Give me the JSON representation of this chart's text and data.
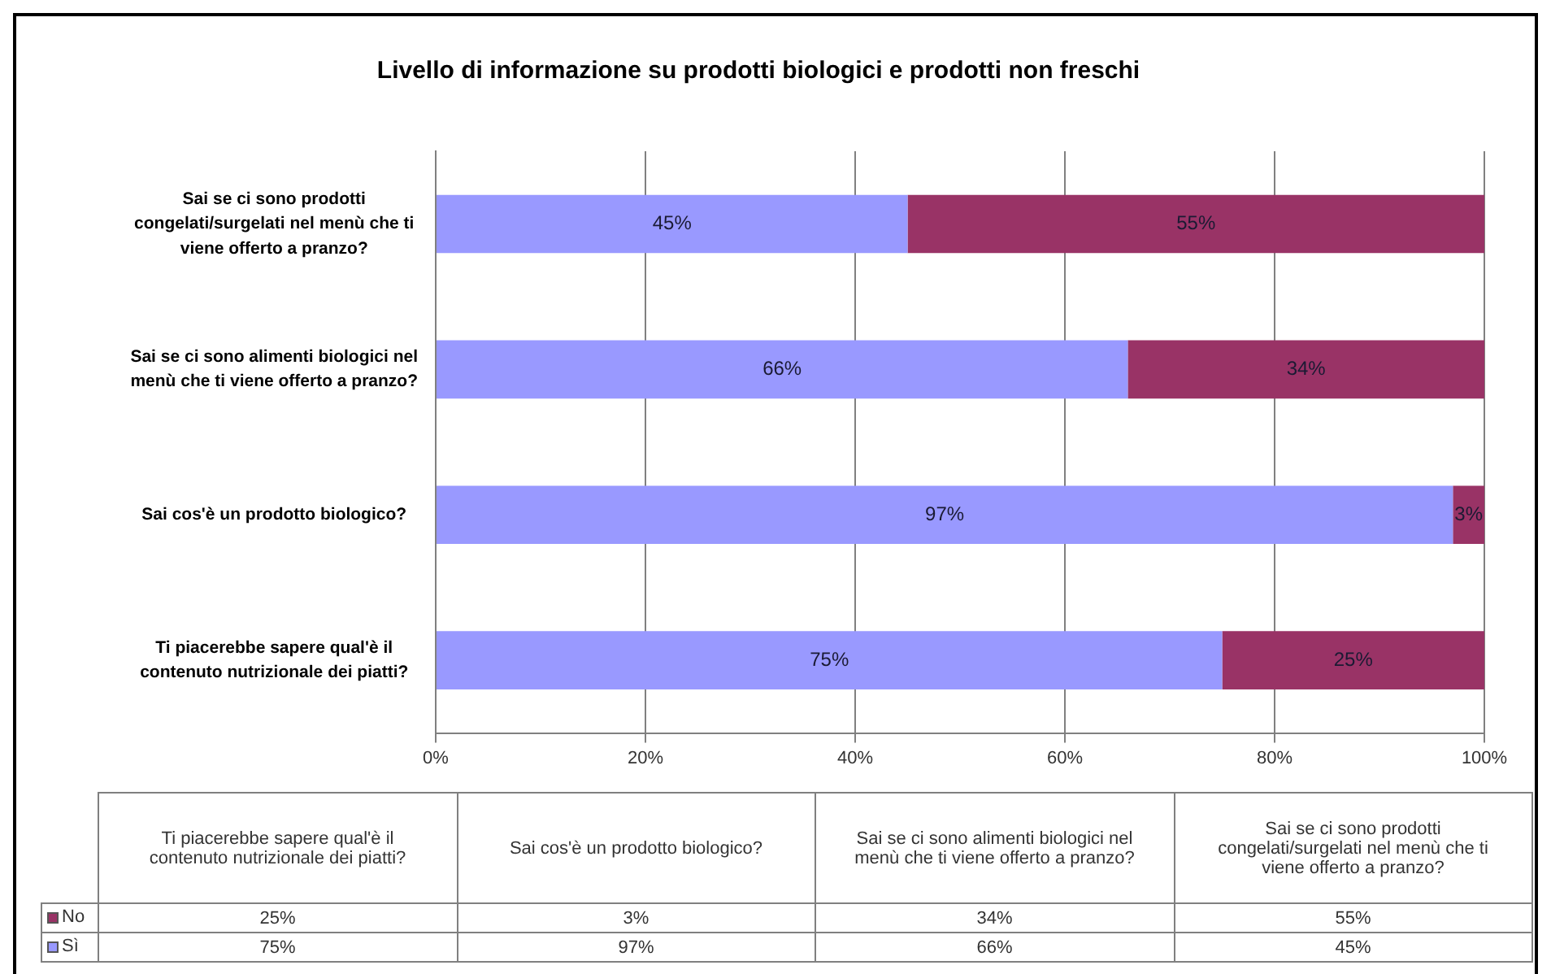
{
  "chart_data": {
    "type": "bar",
    "orientation": "horizontal",
    "stacked": true,
    "title": "Livello di informazione su prodotti biologici e prodotti non freschi",
    "categories": [
      "Sai se ci sono prodotti congelati/surgelati nel menù che ti viene offerto a pranzo?",
      "Sai se ci sono alimenti biologici nel menù che ti viene offerto a pranzo?",
      "Sai cos'è un prodotto biologico?",
      "Ti piacerebbe sapere qual'è il contenuto nutrizionale dei piatti?"
    ],
    "series": [
      {
        "name": "Sì",
        "color": "#9999ff",
        "values": [
          45,
          66,
          97,
          75
        ],
        "value_labels": [
          "45%",
          "66%",
          "97%",
          "75%"
        ]
      },
      {
        "name": "No",
        "color": "#993366",
        "values": [
          55,
          34,
          3,
          25
        ],
        "value_labels": [
          "55%",
          "34%",
          "3%",
          "25%"
        ]
      }
    ],
    "xlim": [
      0,
      100
    ],
    "xticks": [
      {
        "value": 0,
        "label": "0%"
      },
      {
        "value": 20,
        "label": "20%"
      },
      {
        "value": 40,
        "label": "40%"
      },
      {
        "value": 60,
        "label": "60%"
      },
      {
        "value": 80,
        "label": "80%"
      },
      {
        "value": 100,
        "label": "100%"
      }
    ],
    "grid": "x",
    "legend": "bottom"
  }
}
